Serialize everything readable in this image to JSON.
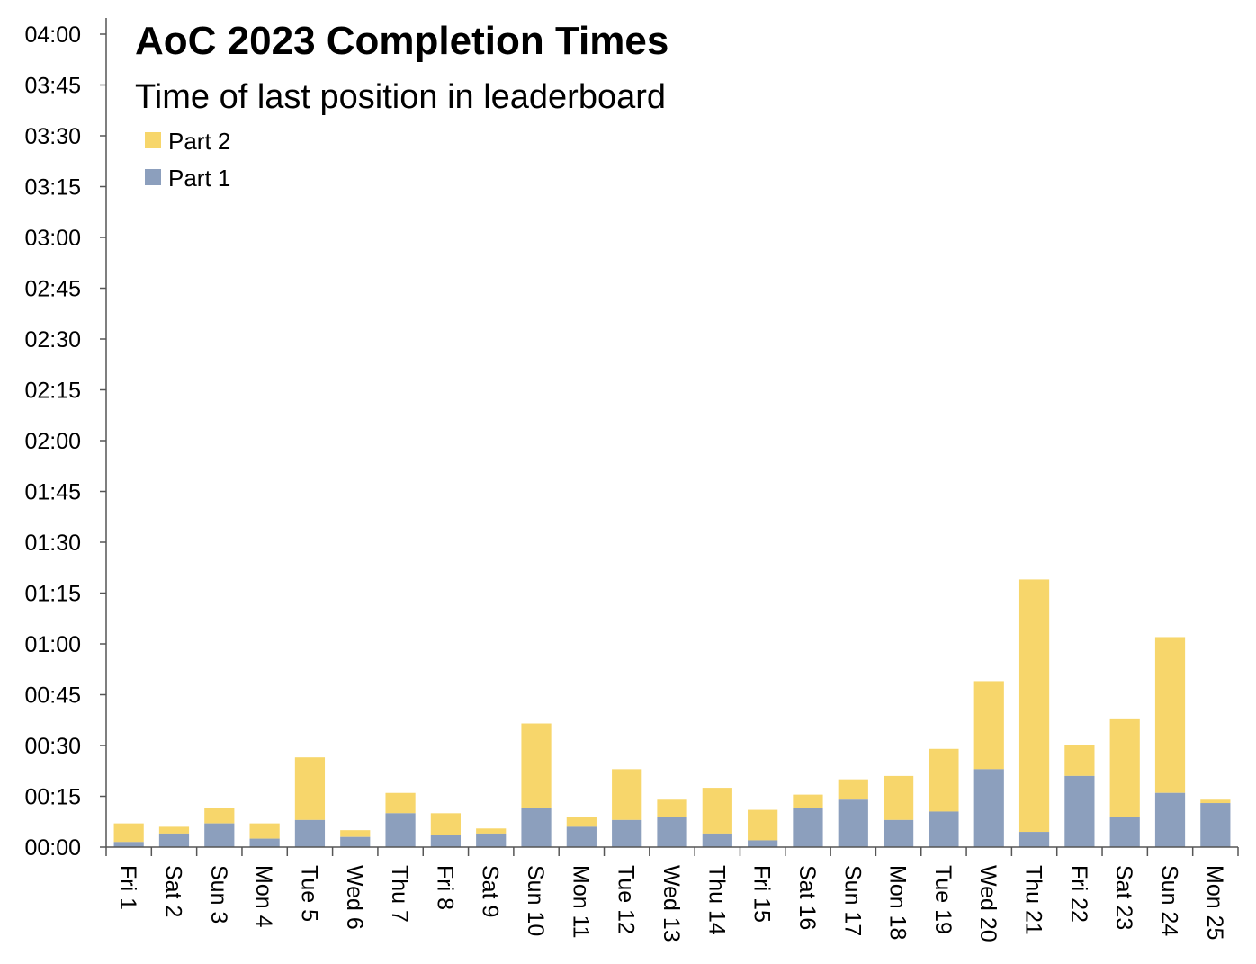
{
  "chart_data": {
    "type": "bar",
    "stacked": true,
    "title": "AoC 2023 Completion Times",
    "subtitle": "Time of last position in leaderboard",
    "xlabel": "",
    "ylabel": "",
    "y_unit": "minutes",
    "ylim": [
      0,
      240
    ],
    "yticks": [
      {
        "value": 0,
        "label": "00:00"
      },
      {
        "value": 15,
        "label": "00:15"
      },
      {
        "value": 30,
        "label": "00:30"
      },
      {
        "value": 45,
        "label": "00:45"
      },
      {
        "value": 60,
        "label": "01:00"
      },
      {
        "value": 75,
        "label": "01:15"
      },
      {
        "value": 90,
        "label": "01:30"
      },
      {
        "value": 105,
        "label": "01:45"
      },
      {
        "value": 120,
        "label": "02:00"
      },
      {
        "value": 135,
        "label": "02:15"
      },
      {
        "value": 150,
        "label": "02:30"
      },
      {
        "value": 165,
        "label": "02:45"
      },
      {
        "value": 180,
        "label": "03:00"
      },
      {
        "value": 195,
        "label": "03:15"
      },
      {
        "value": 210,
        "label": "03:30"
      },
      {
        "value": 225,
        "label": "03:45"
      },
      {
        "value": 240,
        "label": "04:00"
      }
    ],
    "categories": [
      "Fri 1",
      "Sat 2",
      "Sun 3",
      "Mon 4",
      "Tue 5",
      "Wed 6",
      "Thu 7",
      "Fri 8",
      "Sat 9",
      "Sun 10",
      "Mon 11",
      "Tue 12",
      "Wed 13",
      "Thu 14",
      "Fri 15",
      "Sat 16",
      "Sun 17",
      "Mon 18",
      "Tue 19",
      "Wed 20",
      "Thu 21",
      "Fri 22",
      "Sat 23",
      "Sun 24",
      "Mon 25"
    ],
    "series": [
      {
        "name": "Part 1",
        "color": "#8c9fbd",
        "values": [
          1.5,
          4,
          7,
          2.5,
          8,
          3,
          10,
          3.5,
          4,
          11.5,
          6,
          8,
          9,
          4,
          2,
          11.5,
          14,
          8,
          10.5,
          23,
          4.5,
          21,
          9,
          16,
          13
        ]
      },
      {
        "name": "Part 2",
        "color": "#f7d66b",
        "values": [
          5.5,
          2,
          4.5,
          4.5,
          18.5,
          2,
          6,
          6.5,
          1.5,
          25,
          3,
          15,
          5,
          13.5,
          9,
          4,
          6,
          13,
          18.5,
          26,
          74.5,
          9,
          29,
          46,
          1
        ]
      }
    ],
    "legend": {
      "position": "top-left",
      "entries": [
        "Part 2",
        "Part 1"
      ]
    },
    "grid": false
  }
}
